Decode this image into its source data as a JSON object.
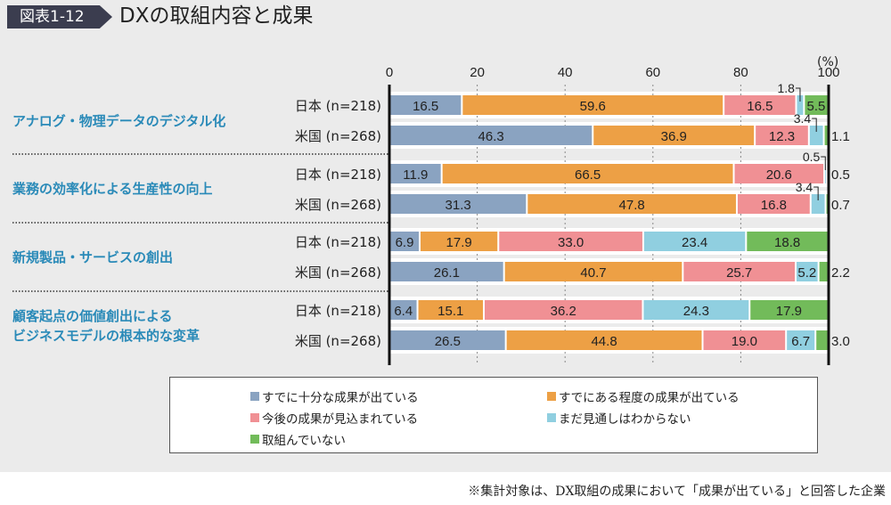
{
  "header": {
    "figure_number": "図表1-12",
    "title": "DXの取組内容と成果"
  },
  "footnote": "※集計対象は、DX取組の成果において「成果が出ている」と回答した企業",
  "chart_data": {
    "type": "bar",
    "orientation": "horizontal",
    "stacked": true,
    "title": "DXの取組内容と成果",
    "unit_label": "(%)",
    "xlim": [
      0,
      100
    ],
    "xticks": [
      0,
      20,
      40,
      60,
      80,
      100
    ],
    "grid": true,
    "legend_position": "bottom",
    "series": [
      {
        "name": "すでに十分な成果が出ている",
        "color": "#8aa3c1"
      },
      {
        "name": "すでにある程度の成果が出ている",
        "color": "#eda045"
      },
      {
        "name": "今後の成果が見込まれている",
        "color": "#f09094"
      },
      {
        "name": "まだ見通しはわからない",
        "color": "#90cfe0"
      },
      {
        "name": "取組んでいない",
        "color": "#72bb5a"
      }
    ],
    "groups": [
      {
        "category": "アナログ・物理データのデジタル化",
        "rows": [
          {
            "label": "日本 (n=218)",
            "values": [
              16.5,
              59.6,
              16.5,
              1.8,
              5.5
            ]
          },
          {
            "label": "米国 (n=268)",
            "values": [
              46.3,
              36.9,
              12.3,
              3.4,
              1.1
            ]
          }
        ]
      },
      {
        "category": "業務の効率化による生産性の向上",
        "rows": [
          {
            "label": "日本 (n=218)",
            "values": [
              11.9,
              66.5,
              20.6,
              0.5,
              0.5
            ]
          },
          {
            "label": "米国 (n=268)",
            "values": [
              31.3,
              47.8,
              16.8,
              3.4,
              0.7
            ]
          }
        ]
      },
      {
        "category": "新規製品・サービスの創出",
        "rows": [
          {
            "label": "日本 (n=218)",
            "values": [
              6.9,
              17.9,
              33.0,
              23.4,
              18.8
            ]
          },
          {
            "label": "米国 (n=268)",
            "values": [
              26.1,
              40.7,
              25.7,
              5.2,
              2.2
            ]
          }
        ]
      },
      {
        "category": "顧客起点の価値創出による\nビジネスモデルの根本的な変革",
        "category_lines": [
          "顧客起点の価値創出による",
          "ビジネスモデルの根本的な変革"
        ],
        "rows": [
          {
            "label": "日本 (n=218)",
            "values": [
              6.4,
              15.1,
              36.2,
              24.3,
              17.9
            ]
          },
          {
            "label": "米国 (n=268)",
            "values": [
              26.5,
              44.8,
              19.0,
              6.7,
              3.0
            ]
          }
        ]
      }
    ]
  }
}
